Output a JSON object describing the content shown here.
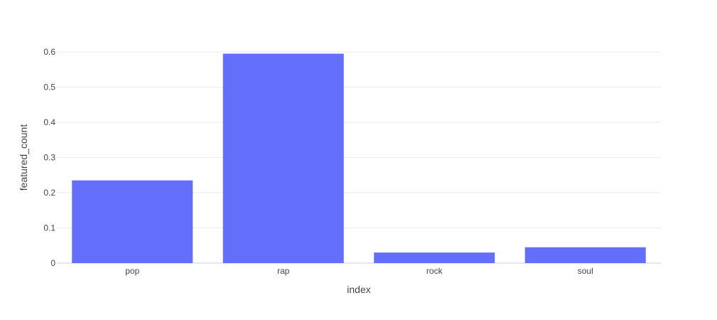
{
  "chart_data": {
    "type": "bar",
    "categories": [
      "pop",
      "rap",
      "rock",
      "soul"
    ],
    "values": [
      0.235,
      0.595,
      0.03,
      0.045
    ],
    "title": "",
    "xlabel": "index",
    "ylabel": "featured_count",
    "ylim": [
      0,
      0.6
    ],
    "yticks": [
      0,
      0.1,
      0.2,
      0.3,
      0.4,
      0.5,
      0.6
    ],
    "ytick_labels": [
      "0",
      "0.1",
      "0.2",
      "0.3",
      "0.4",
      "0.5",
      "0.6"
    ],
    "grid": true,
    "legend": "none",
    "bar_color": "#636efa"
  }
}
